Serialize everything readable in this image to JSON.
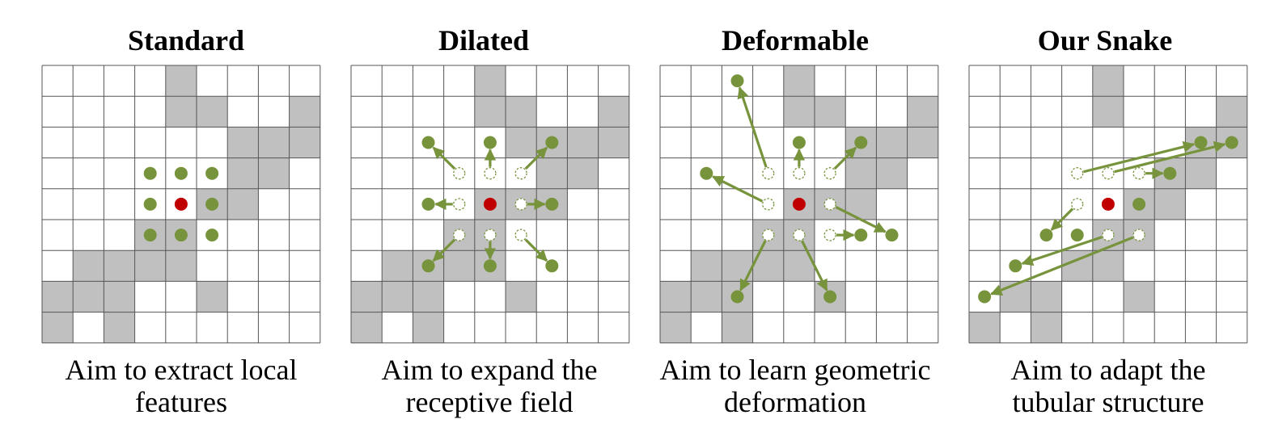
{
  "colors": {
    "shaded": "#c0c0c0",
    "grid": "#555555",
    "point": "#77933c",
    "center": "#c00000"
  },
  "panels": [
    {
      "title": "Standard",
      "caption_lines": [
        "Aim to extract local",
        "features"
      ],
      "shaded_cells": [
        [
          0,
          4
        ],
        [
          1,
          4
        ],
        [
          1,
          5
        ],
        [
          1,
          8
        ],
        [
          2,
          6
        ],
        [
          2,
          7
        ],
        [
          2,
          8
        ],
        [
          3,
          6
        ],
        [
          3,
          7
        ],
        [
          4,
          5
        ],
        [
          4,
          6
        ],
        [
          5,
          3
        ],
        [
          5,
          4
        ],
        [
          6,
          1
        ],
        [
          6,
          2
        ],
        [
          6,
          3
        ],
        [
          6,
          4
        ],
        [
          7,
          0
        ],
        [
          7,
          1
        ],
        [
          7,
          2
        ],
        [
          7,
          5
        ],
        [
          8,
          0
        ],
        [
          8,
          2
        ]
      ],
      "center": [
        4.5,
        4.5
      ],
      "points": [
        [
          3.5,
          3.5
        ],
        [
          3.5,
          4.5
        ],
        [
          3.5,
          5.5
        ],
        [
          4.5,
          3.5
        ],
        [
          4.5,
          5.5
        ],
        [
          5.5,
          3.5
        ],
        [
          5.5,
          4.5
        ],
        [
          5.5,
          5.5
        ]
      ],
      "origins": [],
      "arrows": []
    },
    {
      "title": "Dilated",
      "caption_lines": [
        "Aim to expand the",
        "receptive field"
      ],
      "shaded_cells": [
        [
          0,
          4
        ],
        [
          1,
          4
        ],
        [
          1,
          5
        ],
        [
          1,
          8
        ],
        [
          2,
          5
        ],
        [
          2,
          6
        ],
        [
          2,
          7
        ],
        [
          2,
          8
        ],
        [
          3,
          6
        ],
        [
          3,
          7
        ],
        [
          4,
          4
        ],
        [
          4,
          5
        ],
        [
          4,
          6
        ],
        [
          5,
          3
        ],
        [
          5,
          4
        ],
        [
          6,
          1
        ],
        [
          6,
          2
        ],
        [
          6,
          3
        ],
        [
          6,
          4
        ],
        [
          7,
          0
        ],
        [
          7,
          1
        ],
        [
          7,
          2
        ],
        [
          7,
          5
        ],
        [
          8,
          0
        ],
        [
          8,
          2
        ]
      ],
      "center": [
        4.5,
        4.5
      ],
      "points": [
        [
          2.5,
          2.5
        ],
        [
          2.5,
          4.5
        ],
        [
          2.5,
          6.5
        ],
        [
          4.5,
          2.5
        ],
        [
          4.5,
          6.5
        ],
        [
          6.5,
          2.5
        ],
        [
          6.5,
          4.5
        ],
        [
          6.5,
          6.5
        ]
      ],
      "origins": [
        [
          3.5,
          3.5
        ],
        [
          3.5,
          4.5
        ],
        [
          3.5,
          5.5
        ],
        [
          4.5,
          3.5
        ],
        [
          4.5,
          5.5
        ],
        [
          5.5,
          3.5
        ],
        [
          5.5,
          4.5
        ],
        [
          5.5,
          5.5
        ]
      ],
      "arrows": [
        [
          [
            3.5,
            3.5
          ],
          [
            2.5,
            2.5
          ]
        ],
        [
          [
            3.5,
            4.5
          ],
          [
            2.5,
            4.5
          ]
        ],
        [
          [
            3.5,
            5.5
          ],
          [
            2.5,
            6.5
          ]
        ],
        [
          [
            4.5,
            3.5
          ],
          [
            4.5,
            2.5
          ]
        ],
        [
          [
            4.5,
            5.5
          ],
          [
            4.5,
            6.5
          ]
        ],
        [
          [
            5.5,
            3.5
          ],
          [
            6.5,
            2.5
          ]
        ],
        [
          [
            5.5,
            4.5
          ],
          [
            6.5,
            4.5
          ]
        ],
        [
          [
            5.5,
            5.5
          ],
          [
            6.5,
            6.5
          ]
        ]
      ]
    },
    {
      "title": "Deformable",
      "caption_lines": [
        "Aim to learn geometric",
        "deformation"
      ],
      "shaded_cells": [
        [
          0,
          4
        ],
        [
          1,
          4
        ],
        [
          1,
          5
        ],
        [
          1,
          8
        ],
        [
          2,
          6
        ],
        [
          2,
          7
        ],
        [
          2,
          8
        ],
        [
          3,
          6
        ],
        [
          3,
          7
        ],
        [
          4,
          4
        ],
        [
          4,
          5
        ],
        [
          4,
          6
        ],
        [
          5,
          3
        ],
        [
          5,
          4
        ],
        [
          6,
          1
        ],
        [
          6,
          2
        ],
        [
          6,
          3
        ],
        [
          6,
          4
        ],
        [
          7,
          0
        ],
        [
          7,
          1
        ],
        [
          7,
          2
        ],
        [
          7,
          5
        ],
        [
          8,
          0
        ],
        [
          8,
          2
        ]
      ],
      "center": [
        4.5,
        4.5
      ],
      "points": [
        [
          0.5,
          2.5
        ],
        [
          2.5,
          4.5
        ],
        [
          2.5,
          6.5
        ],
        [
          3.5,
          1.5
        ],
        [
          5.5,
          7.5
        ],
        [
          5.5,
          6.5
        ],
        [
          7.5,
          2.5
        ],
        [
          7.5,
          5.5
        ]
      ],
      "origins": [
        [
          3.5,
          3.5
        ],
        [
          3.5,
          4.5
        ],
        [
          3.5,
          5.5
        ],
        [
          4.5,
          3.5
        ],
        [
          4.5,
          5.5
        ],
        [
          5.5,
          3.5
        ],
        [
          5.5,
          4.5
        ],
        [
          5.5,
          5.5
        ]
      ],
      "arrows": [
        [
          [
            3.5,
            3.5
          ],
          [
            0.5,
            2.5
          ]
        ],
        [
          [
            3.5,
            4.5
          ],
          [
            2.5,
            4.5
          ]
        ],
        [
          [
            3.5,
            5.5
          ],
          [
            2.5,
            6.5
          ]
        ],
        [
          [
            4.5,
            3.5
          ],
          [
            3.5,
            1.5
          ]
        ],
        [
          [
            4.5,
            5.5
          ],
          [
            5.5,
            7.5
          ]
        ],
        [
          [
            5.5,
            3.5
          ],
          [
            7.5,
            2.5
          ]
        ],
        [
          [
            5.5,
            4.5
          ],
          [
            7.5,
            5.5
          ]
        ],
        [
          [
            5.5,
            5.5
          ],
          [
            5.5,
            6.5
          ]
        ]
      ]
    },
    {
      "title": "Our Snake",
      "caption_lines": [
        "Aim to adapt the",
        "tubular structure"
      ],
      "shaded_cells": [
        [
          0,
          4
        ],
        [
          1,
          4
        ],
        [
          1,
          8
        ],
        [
          2,
          7
        ],
        [
          2,
          8
        ],
        [
          3,
          6
        ],
        [
          3,
          7
        ],
        [
          4,
          5
        ],
        [
          4,
          6
        ],
        [
          5,
          4
        ],
        [
          5,
          5
        ],
        [
          6,
          3
        ],
        [
          6,
          4
        ],
        [
          7,
          1
        ],
        [
          7,
          2
        ],
        [
          7,
          5
        ],
        [
          8,
          0
        ],
        [
          8,
          2
        ]
      ],
      "center": [
        4.5,
        4.5
      ],
      "points": [
        [
          2.5,
          7.5
        ],
        [
          2.5,
          8.5
        ],
        [
          3.5,
          6.5
        ],
        [
          4.5,
          5.5
        ],
        [
          5.5,
          2.5
        ],
        [
          5.5,
          3.5
        ],
        [
          6.5,
          1.5
        ],
        [
          7.5,
          0.5
        ]
      ],
      "origins": [
        [
          3.5,
          3.5
        ],
        [
          3.5,
          4.5
        ],
        [
          3.5,
          5.5
        ],
        [
          4.5,
          3.5
        ],
        [
          5.5,
          4.5
        ],
        [
          5.5,
          5.5
        ]
      ],
      "arrows": [
        [
          [
            3.5,
            3.5
          ],
          [
            2.5,
            7.5
          ]
        ],
        [
          [
            3.5,
            4.5
          ],
          [
            2.5,
            8.5
          ]
        ],
        [
          [
            3.5,
            5.5
          ],
          [
            3.5,
            6.5
          ]
        ],
        [
          [
            4.5,
            3.5
          ],
          [
            5.5,
            2.5
          ]
        ],
        [
          [
            5.5,
            4.5
          ],
          [
            6.5,
            1.5
          ]
        ],
        [
          [
            5.5,
            5.5
          ],
          [
            7.5,
            0.5
          ]
        ]
      ]
    }
  ]
}
